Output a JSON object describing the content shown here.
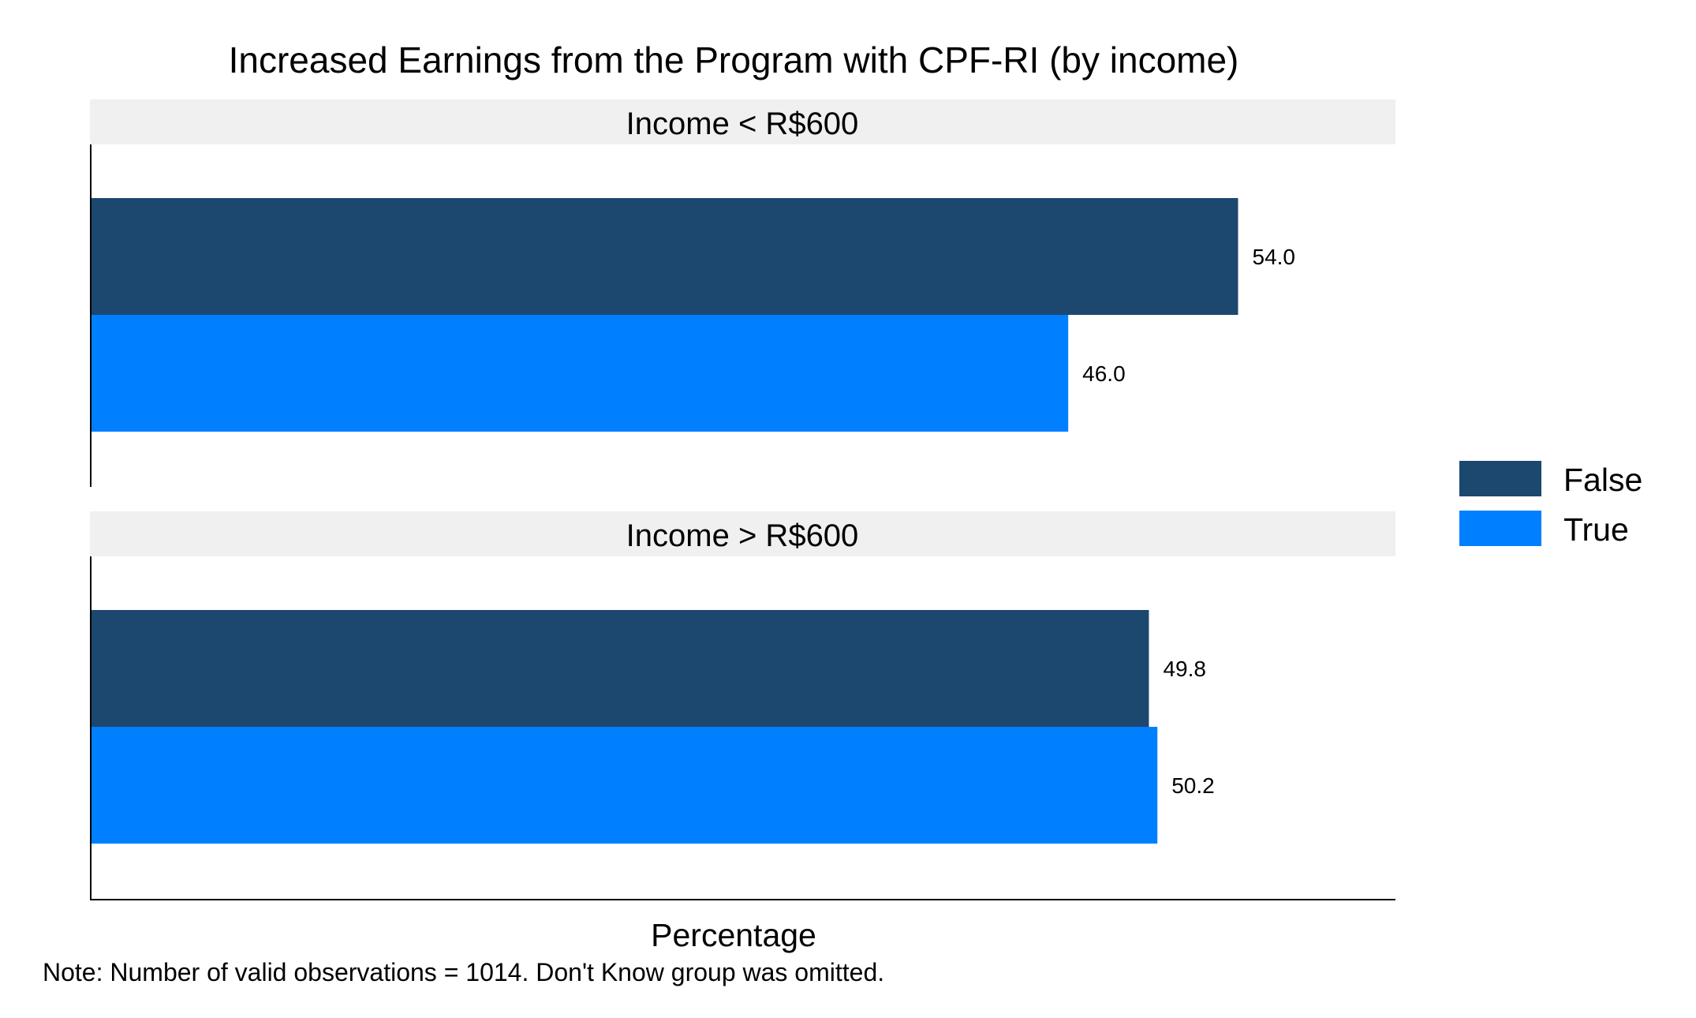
{
  "chart_data": {
    "type": "bar",
    "orientation": "horizontal",
    "title": "Increased Earnings from the Program with CPF-RI (by income)",
    "xlabel": "Percentage",
    "ylabel": "",
    "xlim": [
      0,
      60
    ],
    "grid": false,
    "note": "Note: Number of valid observations = 1014. Don't Know group was omitted.",
    "legend": {
      "placement": "right",
      "items": [
        {
          "label": "False",
          "color": "#1c476f"
        },
        {
          "label": "True",
          "color": "#0080ff"
        }
      ]
    },
    "panels": [
      {
        "label": "Income < R$600",
        "bars": [
          {
            "series": "False",
            "value": 54.0,
            "label": "54.0"
          },
          {
            "series": "True",
            "value": 46.0,
            "label": "46.0"
          }
        ]
      },
      {
        "label": "Income > R$600",
        "bars": [
          {
            "series": "False",
            "value": 49.8,
            "label": "49.8"
          },
          {
            "series": "True",
            "value": 50.2,
            "label": "50.2"
          }
        ]
      }
    ]
  },
  "colors": {
    "strip_background": "#f0f0f0",
    "axis": "#000000"
  }
}
